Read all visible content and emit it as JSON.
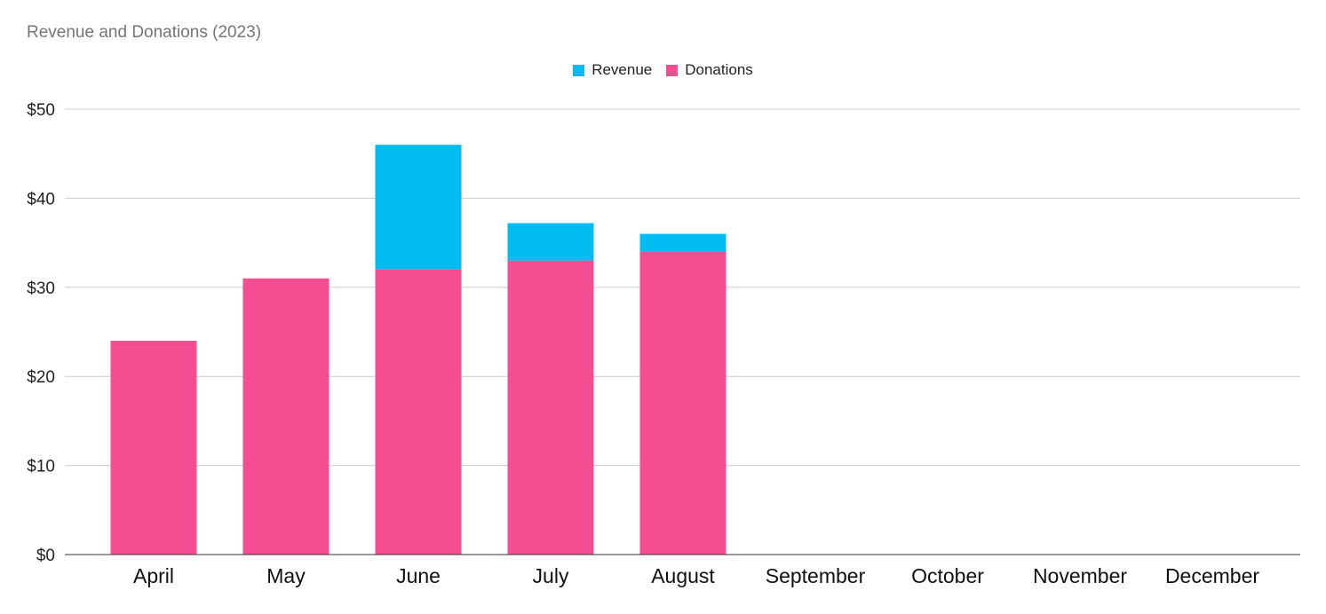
{
  "chart_data": {
    "type": "bar",
    "stacked": true,
    "title": "Revenue and Donations (2023)",
    "xlabel": "",
    "ylabel": "",
    "categories": [
      "April",
      "May",
      "June",
      "July",
      "August",
      "September",
      "October",
      "November",
      "December"
    ],
    "series": [
      {
        "name": "Donations",
        "color": "#f44d91",
        "values": [
          24,
          31,
          32,
          33,
          34,
          0,
          0,
          0,
          0
        ]
      },
      {
        "name": "Revenue",
        "color": "#00bcf0",
        "values": [
          0,
          0,
          14,
          4.2,
          2,
          0,
          0,
          0,
          0
        ]
      }
    ],
    "legend_order": [
      "Revenue",
      "Donations"
    ],
    "legend_position": "top-center",
    "ylim": [
      0,
      50
    ],
    "yticks": [
      0,
      10,
      20,
      30,
      40,
      50
    ],
    "ytick_labels": [
      "$0",
      "$10",
      "$20",
      "$30",
      "$40",
      "$50"
    ],
    "grid": true
  }
}
